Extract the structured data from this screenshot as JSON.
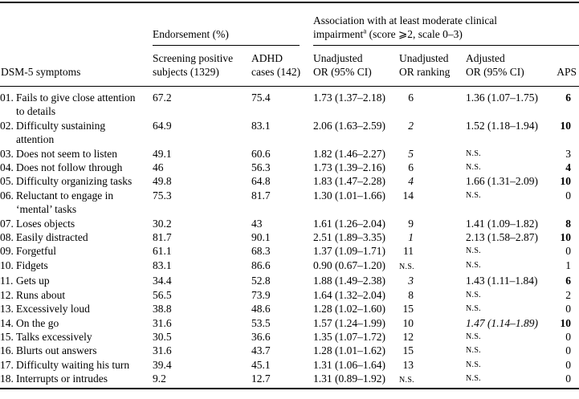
{
  "table": {
    "col1_header": "DSM-5 symptoms",
    "group1": {
      "label": "Endorsement (%)"
    },
    "group2": {
      "line1": "Association with at least moderate clinical",
      "line2_pre": "impairment",
      "sup": "a",
      "line2_post": " (score ⩾2, scale 0–3)"
    },
    "columns": {
      "screening": "Screening positive\nsubjects (1329)",
      "adhd": "ADHD\ncases (142)",
      "unadj_or": "Unadjusted\nOR (95% CI)",
      "rank": "Unadjusted\nOR ranking",
      "adj_or": "Adjusted\nOR (95% CI)",
      "aps": "APS"
    },
    "rows": [
      {
        "num": "01.",
        "lines": [
          "Fails to give close attention",
          "to details"
        ],
        "screening": "67.2",
        "adhd": "75.4",
        "unadj_or": "1.73 (1.37–2.18)",
        "rank": "6",
        "rank_italic": false,
        "rank_ns": false,
        "adj_or": "1.36 (1.07–1.75)",
        "adj_or_ns": false,
        "adj_or_italic": false,
        "aps": "6",
        "aps_bold": true
      },
      {
        "num": "02.",
        "lines": [
          "Difficulty sustaining",
          "attention"
        ],
        "screening": "64.9",
        "adhd": "83.1",
        "unadj_or": "2.06 (1.63–2.59)",
        "rank": "2",
        "rank_italic": true,
        "rank_ns": false,
        "adj_or": "1.52 (1.18–1.94)",
        "adj_or_ns": false,
        "adj_or_italic": false,
        "aps": "10",
        "aps_bold": true
      },
      {
        "num": "03.",
        "lines": [
          "Does not seem to listen"
        ],
        "screening": "49.1",
        "adhd": "60.6",
        "unadj_or": "1.82 (1.46–2.27)",
        "rank": "5",
        "rank_italic": true,
        "rank_ns": false,
        "adj_or": "N.S.",
        "adj_or_ns": true,
        "adj_or_italic": false,
        "aps": "3",
        "aps_bold": false
      },
      {
        "num": "04.",
        "lines": [
          "Does not follow through"
        ],
        "screening": "46",
        "adhd": "56.3",
        "unadj_or": "1.73 (1.39–2.16)",
        "rank": "6",
        "rank_italic": false,
        "rank_ns": false,
        "adj_or": "N.S.",
        "adj_or_ns": true,
        "adj_or_italic": false,
        "aps": "4",
        "aps_bold": true
      },
      {
        "num": "05.",
        "lines": [
          "Difficulty organizing tasks"
        ],
        "screening": "49.8",
        "adhd": "64.8",
        "unadj_or": "1.83 (1.47–2.28)",
        "rank": "4",
        "rank_italic": true,
        "rank_ns": false,
        "adj_or": "1.66 (1.31–2.09)",
        "adj_or_ns": false,
        "adj_or_italic": false,
        "aps": "10",
        "aps_bold": true
      },
      {
        "num": "06.",
        "lines": [
          "Reluctant to engage in",
          "‘mental’ tasks"
        ],
        "screening": "75.3",
        "adhd": "81.7",
        "unadj_or": "1.30 (1.01–1.66)",
        "rank": "14",
        "rank_italic": false,
        "rank_ns": false,
        "adj_or": "N.S.",
        "adj_or_ns": true,
        "adj_or_italic": false,
        "aps": "0",
        "aps_bold": false
      },
      {
        "num": "07.",
        "lines": [
          "Loses objects"
        ],
        "screening": "30.2",
        "adhd": "43",
        "unadj_or": "1.61 (1.26–2.04)",
        "rank": "9",
        "rank_italic": false,
        "rank_ns": false,
        "adj_or": "1.41 (1.09–1.82)",
        "adj_or_ns": false,
        "adj_or_italic": false,
        "aps": "8",
        "aps_bold": true
      },
      {
        "num": "08.",
        "lines": [
          "Easily distracted"
        ],
        "screening": "81.7",
        "adhd": "90.1",
        "unadj_or": "2.51 (1.89–3.35)",
        "rank": "1",
        "rank_italic": true,
        "rank_ns": false,
        "adj_or": "2.13 (1.58–2.87)",
        "adj_or_ns": false,
        "adj_or_italic": false,
        "aps": "10",
        "aps_bold": true
      },
      {
        "num": "09.",
        "lines": [
          "Forgetful"
        ],
        "screening": "61.1",
        "adhd": "68.3",
        "unadj_or": "1.37 (1.09–1.71)",
        "rank": "11",
        "rank_italic": false,
        "rank_ns": false,
        "adj_or": "N.S.",
        "adj_or_ns": true,
        "adj_or_italic": false,
        "aps": "0",
        "aps_bold": false
      },
      {
        "num": "10.",
        "lines": [
          "Fidgets"
        ],
        "screening": "83.1",
        "adhd": "86.6",
        "unadj_or": "0.90 (0.67–1.20)",
        "rank": "N.S.",
        "rank_italic": false,
        "rank_ns": true,
        "adj_or": "N.S.",
        "adj_or_ns": true,
        "adj_or_italic": false,
        "aps": "1",
        "aps_bold": false
      },
      {
        "num": "11.",
        "lines": [
          "Gets up"
        ],
        "screening": "34.4",
        "adhd": "52.8",
        "unadj_or": "1.88 (1.49–2.38)",
        "rank": "3",
        "rank_italic": true,
        "rank_ns": false,
        "adj_or": "1.43 (1.11–1.84)",
        "adj_or_ns": false,
        "adj_or_italic": false,
        "aps": "6",
        "aps_bold": true
      },
      {
        "num": "12.",
        "lines": [
          "Runs about"
        ],
        "screening": "56.5",
        "adhd": "73.9",
        "unadj_or": "1.64 (1.32–2.04)",
        "rank": "8",
        "rank_italic": false,
        "rank_ns": false,
        "adj_or": "N.S.",
        "adj_or_ns": true,
        "adj_or_italic": false,
        "aps": "2",
        "aps_bold": false
      },
      {
        "num": "13.",
        "lines": [
          "Excessively loud"
        ],
        "screening": "38.8",
        "adhd": "48.6",
        "unadj_or": "1.28 (1.02–1.60)",
        "rank": "15",
        "rank_italic": false,
        "rank_ns": false,
        "adj_or": "N.S.",
        "adj_or_ns": true,
        "adj_or_italic": false,
        "aps": "0",
        "aps_bold": false
      },
      {
        "num": "14.",
        "lines": [
          "On the go"
        ],
        "screening": "31.6",
        "adhd": "53.5",
        "unadj_or": "1.57 (1.24–1.99)",
        "rank": "10",
        "rank_italic": false,
        "rank_ns": false,
        "adj_or": "1.47 (1.14–1.89)",
        "adj_or_ns": false,
        "adj_or_italic": true,
        "aps": "10",
        "aps_bold": true
      },
      {
        "num": "15.",
        "lines": [
          "Talks excessively"
        ],
        "screening": "30.5",
        "adhd": "36.6",
        "unadj_or": "1.35 (1.07–1.72)",
        "rank": "12",
        "rank_italic": false,
        "rank_ns": false,
        "adj_or": "N.S.",
        "adj_or_ns": true,
        "adj_or_italic": false,
        "aps": "0",
        "aps_bold": false
      },
      {
        "num": "16.",
        "lines": [
          "Blurts out answers"
        ],
        "screening": "31.6",
        "adhd": "43.7",
        "unadj_or": "1.28 (1.01–1.62)",
        "rank": "15",
        "rank_italic": false,
        "rank_ns": false,
        "adj_or": "N.S.",
        "adj_or_ns": true,
        "adj_or_italic": false,
        "aps": "0",
        "aps_bold": false
      },
      {
        "num": "17.",
        "lines": [
          "Difficulty waiting his turn"
        ],
        "screening": "39.4",
        "adhd": "45.1",
        "unadj_or": "1.31 (1.06–1.64)",
        "rank": "13",
        "rank_italic": false,
        "rank_ns": false,
        "adj_or": "N.S.",
        "adj_or_ns": true,
        "adj_or_italic": false,
        "aps": "0",
        "aps_bold": false
      },
      {
        "num": "18.",
        "lines": [
          "Interrupts or intrudes"
        ],
        "screening": "9.2",
        "adhd": "12.7",
        "unadj_or": "1.31 (0.89–1.92)",
        "rank": "N.S.",
        "rank_italic": false,
        "rank_ns": true,
        "adj_or": "N.S.",
        "adj_or_ns": true,
        "adj_or_italic": false,
        "aps": "0",
        "aps_bold": false
      }
    ]
  }
}
